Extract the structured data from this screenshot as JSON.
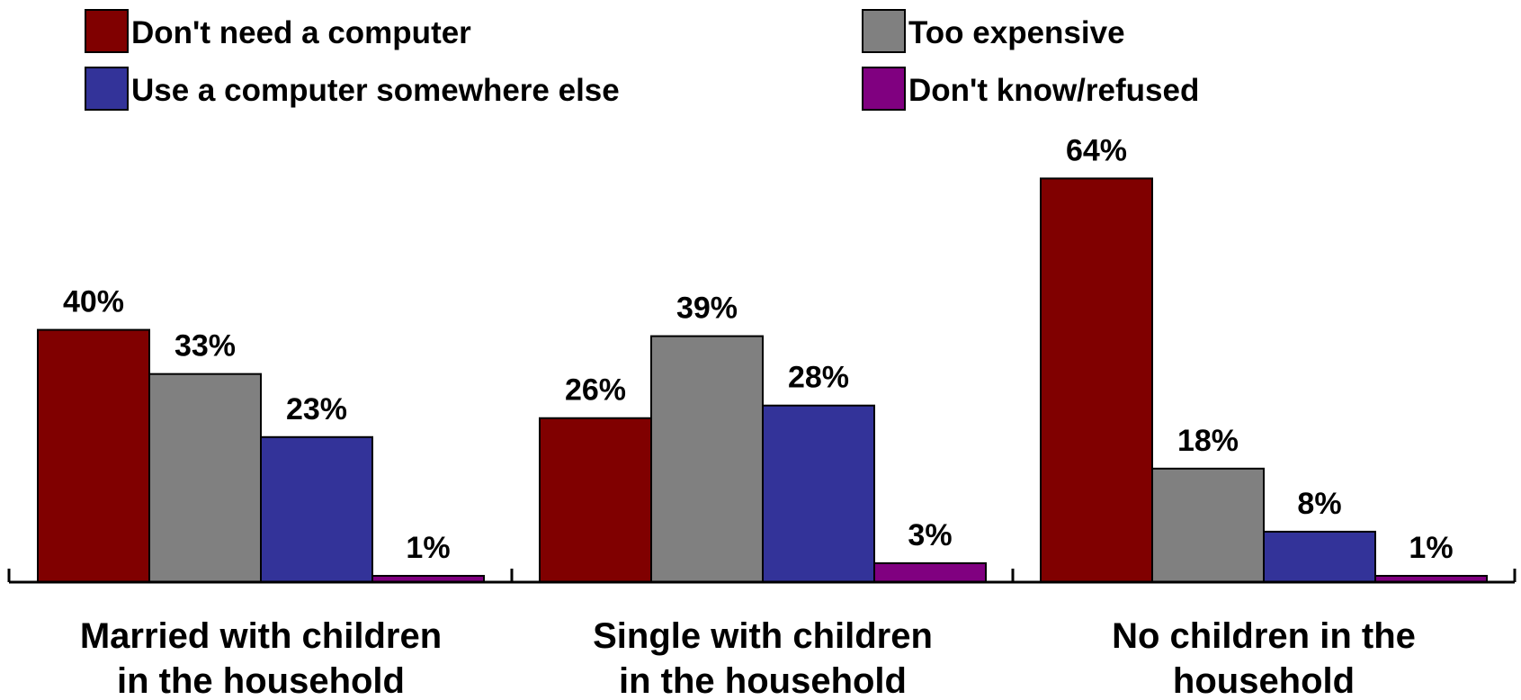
{
  "chart_data": {
    "type": "bar",
    "categories": [
      [
        "Married with children",
        "in the household"
      ],
      [
        "Single with children",
        "in the household"
      ],
      [
        "No children in the",
        "household"
      ]
    ],
    "series": [
      {
        "name": "Don't need a computer",
        "color": "#800000",
        "values": [
          40,
          26,
          64
        ],
        "labels": [
          "40%",
          "26%",
          "64%"
        ]
      },
      {
        "name": "Too expensive",
        "color": "#808080",
        "values": [
          33,
          39,
          18
        ],
        "labels": [
          "33%",
          "39%",
          "18%"
        ]
      },
      {
        "name": "Use a computer somewhere else",
        "color": "#333399",
        "values": [
          23,
          28,
          8
        ],
        "labels": [
          "23%",
          "28%",
          "8%"
        ]
      },
      {
        "name": "Don't know/refused",
        "color": "#800080",
        "values": [
          1,
          3,
          1
        ],
        "labels": [
          "1%",
          "3%",
          "1%"
        ]
      }
    ],
    "legend_position": "top",
    "ylim": [
      0,
      64
    ],
    "grid": false,
    "y_axis_visible": false
  }
}
